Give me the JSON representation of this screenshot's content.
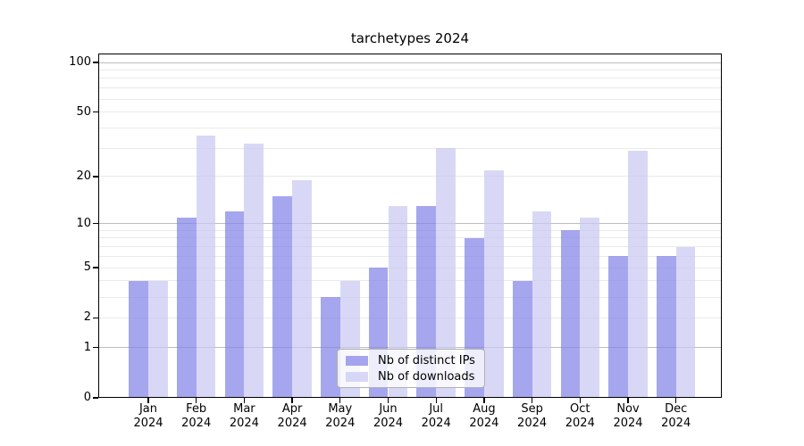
{
  "chart_data": {
    "type": "bar",
    "title": "tarchetypes 2024",
    "categories": [
      "Jan",
      "Feb",
      "Mar",
      "Apr",
      "May",
      "Jun",
      "Jul",
      "Aug",
      "Sep",
      "Oct",
      "Nov",
      "Dec"
    ],
    "x_tick_year": "2024",
    "series": [
      {
        "name": "Nb of distinct IPs",
        "values": [
          4,
          11,
          12,
          15,
          3,
          5,
          13,
          8,
          4,
          9,
          6,
          6
        ],
        "color_hex": "#8484e8",
        "opacity": 0.72
      },
      {
        "name": "Nb of downloads",
        "values": [
          4,
          36,
          32,
          19,
          4,
          13,
          30,
          22,
          12,
          11,
          29,
          7
        ],
        "color_hex": "#c9c9f2",
        "opacity": 0.72
      }
    ],
    "yscale": "log1p",
    "ylim": [
      0,
      113
    ],
    "y_tick_values": [
      0,
      1,
      2,
      5,
      10,
      20,
      50,
      100
    ],
    "y_tick_labels": [
      "0",
      "1",
      "2",
      "5",
      "10",
      "20",
      "50",
      "100"
    ],
    "y_major_grid_values": [
      1,
      10,
      100
    ],
    "y_minor_grid_values": [
      2,
      3,
      4,
      5,
      6,
      7,
      8,
      9,
      20,
      30,
      40,
      50,
      60,
      70,
      80,
      90
    ],
    "grid": true,
    "legend_position": "lower center",
    "colors": {
      "background": "#ffffff",
      "axis": "#000000",
      "text": "#000000",
      "major_grid": "#bdbdbd",
      "minor_grid": "#eaeaea"
    }
  }
}
